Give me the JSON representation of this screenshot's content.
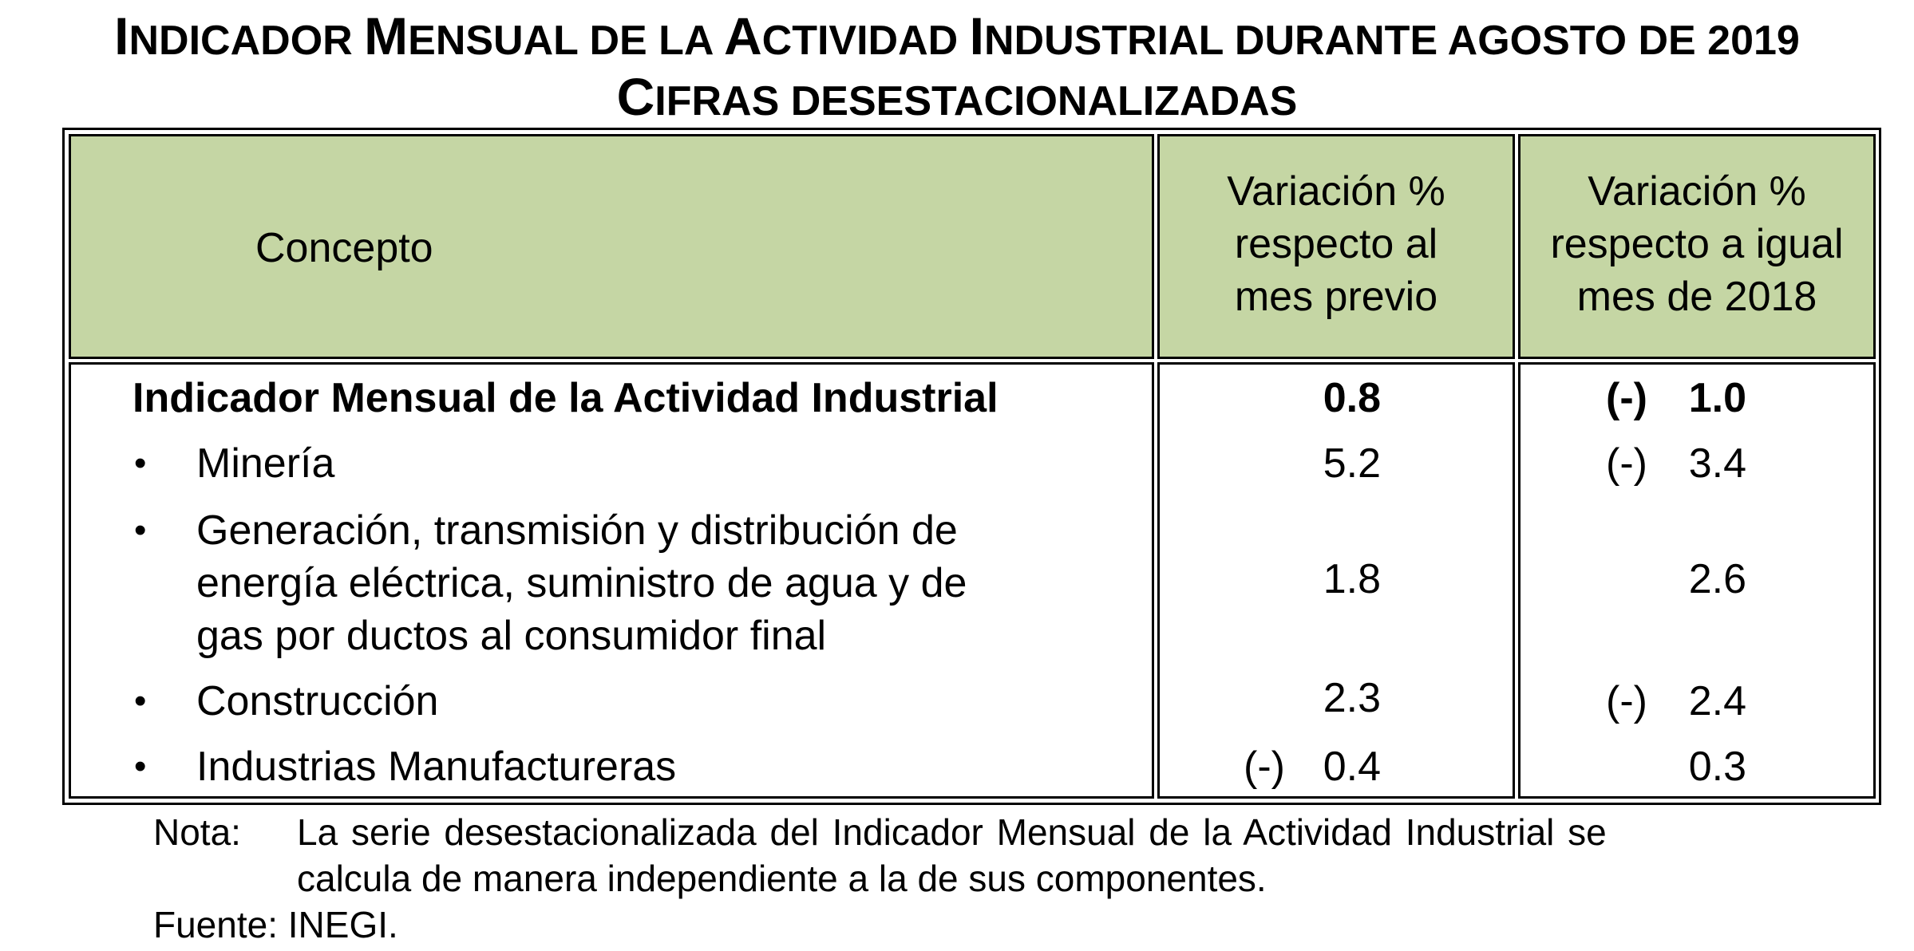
{
  "title": {
    "line1_parts": [
      {
        "cap": "I",
        "rest": "ndicador "
      },
      {
        "cap": "M",
        "rest": "ensual de la "
      },
      {
        "cap": "A",
        "rest": "ctividad "
      },
      {
        "cap": "I",
        "rest": "ndustrial durante agosto de 2019"
      }
    ],
    "line2_cap": "C",
    "line2_rest": "ifras desestacionalizadas"
  },
  "table": {
    "headers": {
      "concept": "Concepto",
      "mes_previo": [
        "Variación %",
        "respecto al",
        "mes previo"
      ],
      "igual_mes": [
        "Variación %",
        "respecto a igual",
        "mes de 2018"
      ]
    },
    "rows": [
      {
        "concept": [
          "Indicador Mensual de la Actividad Industrial"
        ],
        "bold": true,
        "bullet": false,
        "mes_sign": "",
        "mes_value": "0.8",
        "anual_sign": "(-)",
        "anual_value": "1.0"
      },
      {
        "concept": [
          "Minería"
        ],
        "bold": false,
        "bullet": true,
        "mes_sign": "",
        "mes_value": "5.2",
        "anual_sign": "(-)",
        "anual_value": "3.4"
      },
      {
        "concept": [
          "Generación, transmisión y distribución de",
          "energía eléctrica, suministro de agua y de",
          "gas por ductos al consumidor final"
        ],
        "bold": false,
        "bullet": true,
        "mes_sign": "",
        "mes_value": "1.8",
        "anual_sign": "",
        "anual_value": "2.6"
      },
      {
        "concept": [
          "Construcción"
        ],
        "bold": false,
        "bullet": true,
        "mes_sign": "",
        "mes_value": "2.3",
        "anual_sign": "(-)",
        "anual_value": "2.4"
      },
      {
        "concept": [
          "Industrias Manufactureras"
        ],
        "bold": false,
        "bullet": true,
        "mes_sign": "(-)",
        "mes_value": "0.4",
        "anual_sign": "",
        "anual_value": "0.3"
      }
    ],
    "bullet_char": "•",
    "header_color": "#c5d6a4"
  },
  "notes": {
    "nota_label": "Nota:",
    "nota_line1": "La serie desestacionalizada del Indicador Mensual de la Actividad Industrial se",
    "nota_line2": "calcula de manera independiente a la de sus componentes.",
    "fuente": "Fuente: INEGI."
  }
}
